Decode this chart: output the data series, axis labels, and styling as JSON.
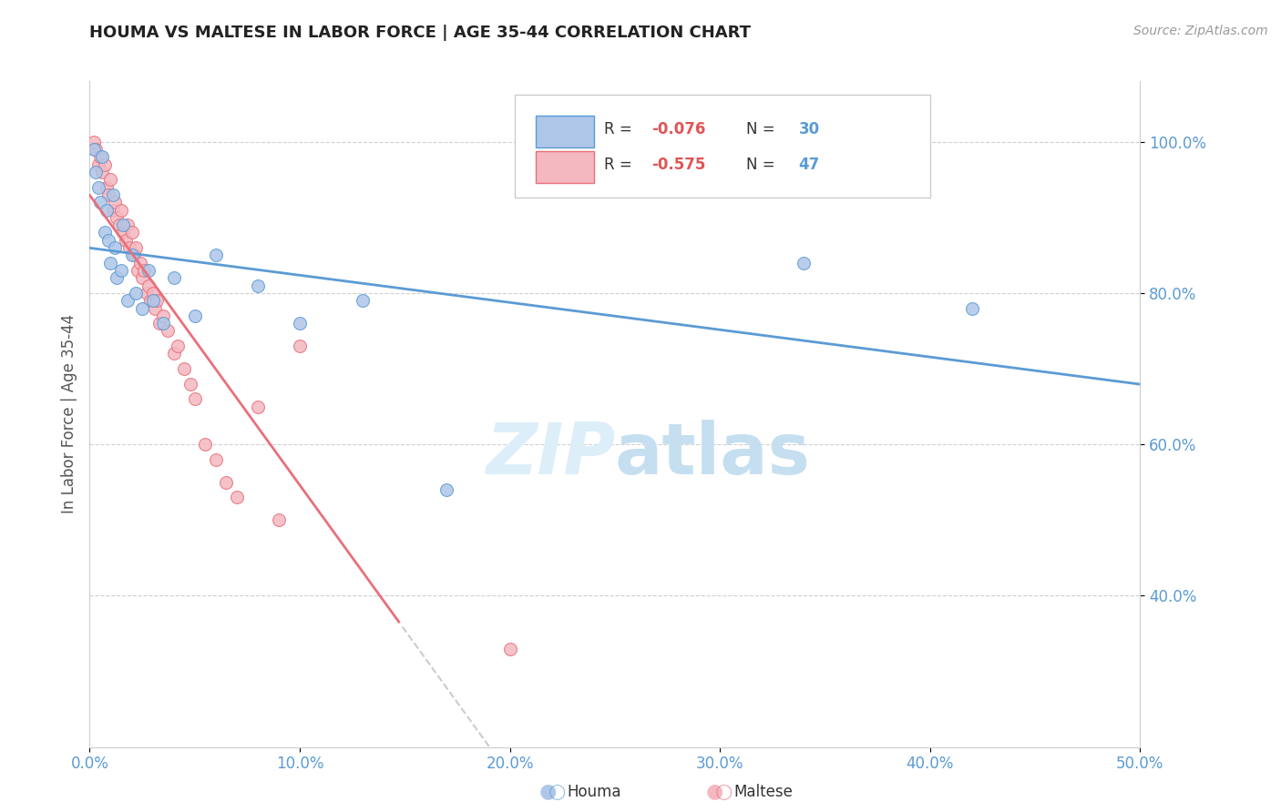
{
  "title": "HOUMA VS MALTESE IN LABOR FORCE | AGE 35-44 CORRELATION CHART",
  "source_text": "Source: ZipAtlas.com",
  "ylabel": "In Labor Force | Age 35-44",
  "xlim": [
    0.0,
    0.5
  ],
  "ylim": [
    0.2,
    1.08
  ],
  "xtick_labels": [
    "0.0%",
    "10.0%",
    "20.0%",
    "30.0%",
    "40.0%",
    "50.0%"
  ],
  "xtick_vals": [
    0.0,
    0.1,
    0.2,
    0.3,
    0.4,
    0.5
  ],
  "ytick_labels": [
    "40.0%",
    "60.0%",
    "80.0%",
    "100.0%"
  ],
  "ytick_vals": [
    0.4,
    0.6,
    0.8,
    1.0
  ],
  "houma_R": -0.076,
  "houma_N": 30,
  "maltese_R": -0.575,
  "maltese_N": 47,
  "houma_color": "#aec6e8",
  "maltese_color": "#f4b8c1",
  "houma_line_color": "#5b9bd5",
  "maltese_line_color": "#e8707a",
  "houma_x": [
    0.002,
    0.003,
    0.004,
    0.005,
    0.006,
    0.007,
    0.008,
    0.009,
    0.01,
    0.011,
    0.012,
    0.013,
    0.015,
    0.016,
    0.018,
    0.02,
    0.022,
    0.025,
    0.028,
    0.03,
    0.035,
    0.04,
    0.05,
    0.06,
    0.08,
    0.1,
    0.13,
    0.17,
    0.34,
    0.42
  ],
  "houma_y": [
    0.99,
    0.96,
    0.94,
    0.92,
    0.98,
    0.88,
    0.91,
    0.87,
    0.84,
    0.93,
    0.86,
    0.82,
    0.83,
    0.89,
    0.79,
    0.85,
    0.8,
    0.78,
    0.83,
    0.79,
    0.76,
    0.82,
    0.77,
    0.85,
    0.81,
    0.76,
    0.79,
    0.54,
    0.84,
    0.78
  ],
  "maltese_x": [
    0.002,
    0.003,
    0.004,
    0.005,
    0.006,
    0.007,
    0.008,
    0.009,
    0.01,
    0.011,
    0.012,
    0.013,
    0.014,
    0.015,
    0.016,
    0.017,
    0.018,
    0.019,
    0.02,
    0.021,
    0.022,
    0.023,
    0.024,
    0.025,
    0.026,
    0.027,
    0.028,
    0.029,
    0.03,
    0.031,
    0.032,
    0.033,
    0.035,
    0.037,
    0.04,
    0.042,
    0.045,
    0.048,
    0.05,
    0.055,
    0.06,
    0.065,
    0.07,
    0.08,
    0.09,
    0.1,
    0.2
  ],
  "maltese_y": [
    1.0,
    0.99,
    0.97,
    0.98,
    0.96,
    0.97,
    0.94,
    0.93,
    0.95,
    0.91,
    0.92,
    0.9,
    0.89,
    0.91,
    0.88,
    0.87,
    0.89,
    0.86,
    0.88,
    0.85,
    0.86,
    0.83,
    0.84,
    0.82,
    0.83,
    0.8,
    0.81,
    0.79,
    0.8,
    0.78,
    0.79,
    0.76,
    0.77,
    0.75,
    0.72,
    0.73,
    0.7,
    0.68,
    0.66,
    0.6,
    0.58,
    0.55,
    0.53,
    0.65,
    0.5,
    0.73,
    0.33
  ]
}
